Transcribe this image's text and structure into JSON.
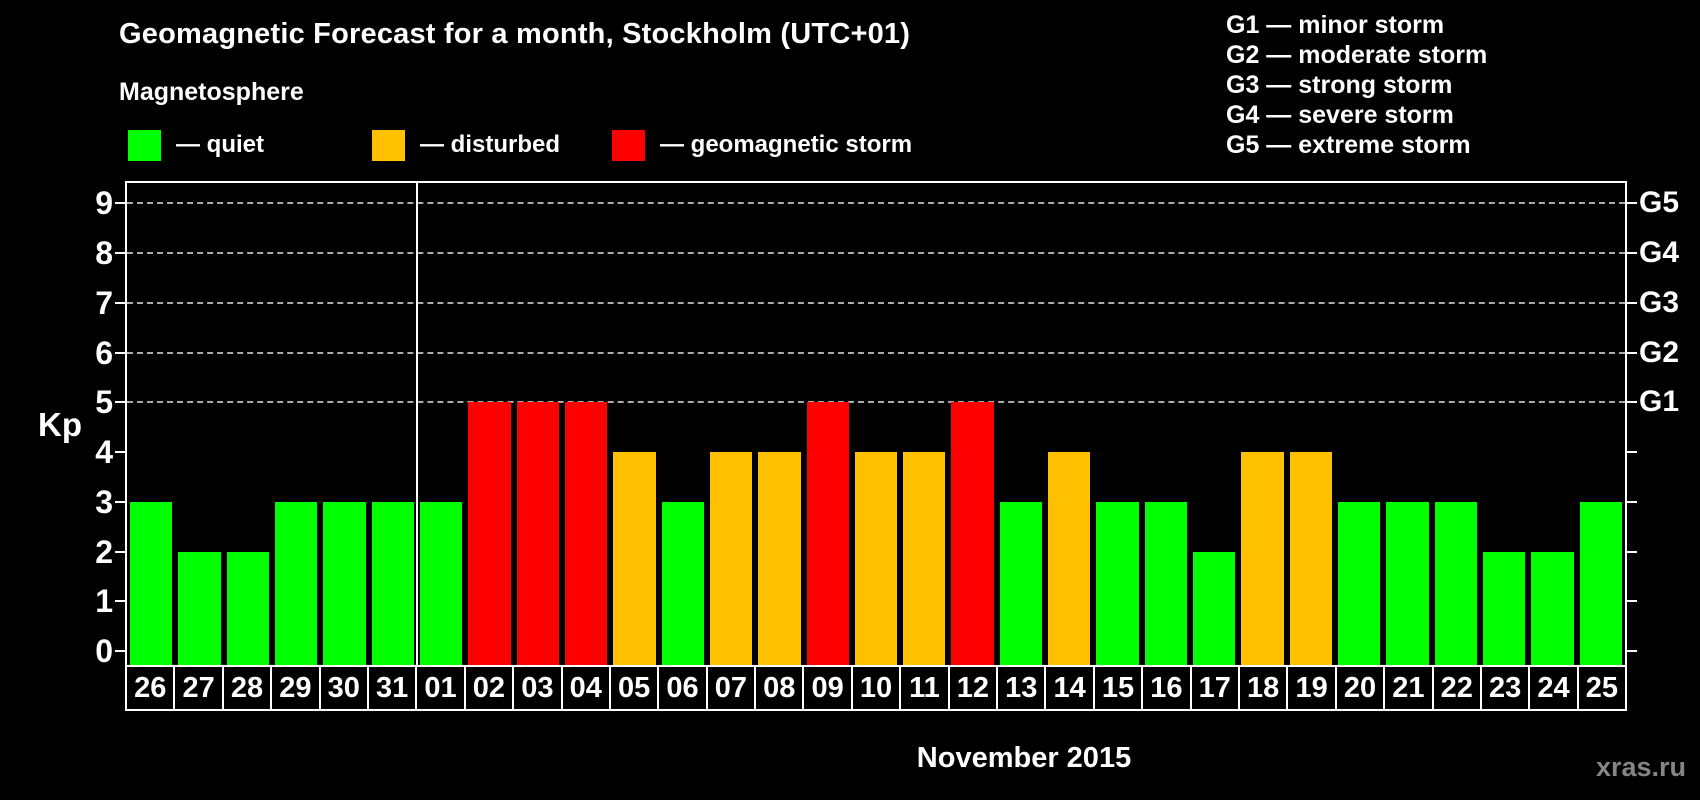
{
  "colors": {
    "quiet": "#00ff00",
    "disturbed": "#ffc000",
    "storm": "#ff0000",
    "axis": "#ffffff",
    "grid": "#aaaaaa",
    "watermark": "#858585"
  },
  "header": {
    "title": "Geomagnetic Forecast for a month, Stockholm (UTC+01)",
    "subtitle": "Magnetosphere"
  },
  "legend": {
    "items": [
      {
        "status": "quiet",
        "label": "— quiet"
      },
      {
        "status": "disturbed",
        "label": "— disturbed"
      },
      {
        "status": "storm",
        "label": "— geomagnetic storm"
      }
    ]
  },
  "g_legend": {
    "lines": [
      "G1 — minor storm",
      "G2 — moderate storm",
      "G3 — strong storm",
      "G4 — severe storm",
      "G5 — extreme storm"
    ]
  },
  "axis": {
    "y_title": "Kp",
    "y_ticks": [
      0,
      1,
      2,
      3,
      4,
      5,
      6,
      7,
      8,
      9
    ],
    "g_ticks": [
      {
        "label": "G1",
        "kp": 5
      },
      {
        "label": "G2",
        "kp": 6
      },
      {
        "label": "G3",
        "kp": 7
      },
      {
        "label": "G4",
        "kp": 8
      },
      {
        "label": "G5",
        "kp": 9
      }
    ]
  },
  "footer": {
    "month_label": "November 2015",
    "watermark": "xras.ru"
  },
  "chart_data": {
    "type": "bar",
    "title": "Geomagnetic Forecast for a month, Stockholm (UTC+01)",
    "xlabel": "November 2015",
    "ylabel": "Kp",
    "ylim": [
      0,
      9.4
    ],
    "grid": "dashed horizontal at Kp 5-9 only",
    "legend_position": "top-left",
    "categories": [
      "26",
      "27",
      "28",
      "29",
      "30",
      "31",
      "01",
      "02",
      "03",
      "04",
      "05",
      "06",
      "07",
      "08",
      "09",
      "10",
      "11",
      "12",
      "13",
      "14",
      "15",
      "16",
      "17",
      "18",
      "19",
      "20",
      "21",
      "22",
      "23",
      "24",
      "25"
    ],
    "values": [
      3,
      2,
      2,
      3,
      3,
      3,
      3,
      5,
      5,
      5,
      4,
      3,
      4,
      4,
      5,
      4,
      4,
      5,
      3,
      4,
      3,
      3,
      2,
      4,
      4,
      3,
      3,
      3,
      2,
      2,
      3
    ],
    "statuses": [
      "quiet",
      "quiet",
      "quiet",
      "quiet",
      "quiet",
      "quiet",
      "quiet",
      "storm",
      "storm",
      "storm",
      "disturbed",
      "quiet",
      "disturbed",
      "disturbed",
      "storm",
      "disturbed",
      "disturbed",
      "storm",
      "quiet",
      "disturbed",
      "quiet",
      "quiet",
      "quiet",
      "disturbed",
      "disturbed",
      "quiet",
      "quiet",
      "quiet",
      "quiet",
      "quiet",
      "quiet"
    ],
    "month_separator_after_index": 5,
    "gridlines_at": [
      5,
      6,
      7,
      8,
      9
    ]
  }
}
